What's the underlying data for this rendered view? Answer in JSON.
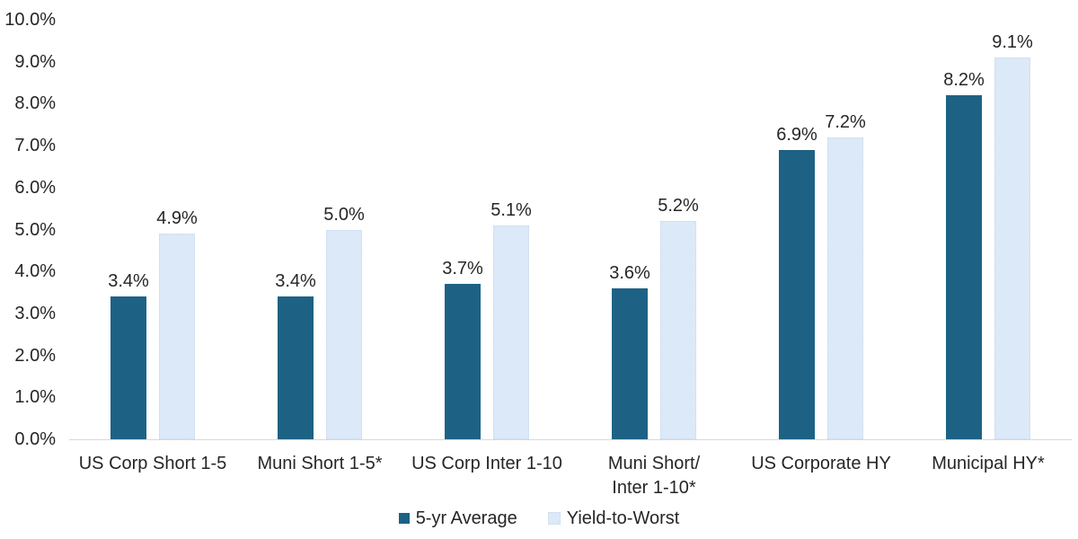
{
  "chart_data": {
    "type": "bar",
    "title": "",
    "categories": [
      "US Corp Short 1-5",
      "Muni Short 1-5*",
      "US Corp Inter 1-10",
      "Muni Short/\nInter 1-10*",
      "US Corporate HY",
      "Municipal HY*"
    ],
    "series": [
      {
        "name": "5-yr Average",
        "color": "#1D6284",
        "values": [
          3.4,
          3.4,
          3.7,
          3.6,
          6.9,
          8.2
        ],
        "labels": [
          "3.4%",
          "3.4%",
          "3.7%",
          "3.6%",
          "6.9%",
          "8.2%"
        ]
      },
      {
        "name": "Yield-to-Worst",
        "color": "#DBE9F8",
        "border_color": "#C9D8EA",
        "values": [
          4.9,
          5.0,
          5.1,
          5.2,
          7.2,
          9.1
        ],
        "labels": [
          "4.9%",
          "5.0%",
          "5.1%",
          "5.2%",
          "7.2%",
          "9.1%"
        ]
      }
    ],
    "y_ticks": [
      {
        "value": 0,
        "label": "0.0%"
      },
      {
        "value": 1,
        "label": "1.0%"
      },
      {
        "value": 2,
        "label": "2.0%"
      },
      {
        "value": 3,
        "label": "3.0%"
      },
      {
        "value": 4,
        "label": "4.0%"
      },
      {
        "value": 5,
        "label": "5.0%"
      },
      {
        "value": 6,
        "label": "6.0%"
      },
      {
        "value": 7,
        "label": "7.0%"
      },
      {
        "value": 8,
        "label": "8.0%"
      },
      {
        "value": 9,
        "label": "9.0%"
      },
      {
        "value": 10,
        "label": "10.0%"
      }
    ],
    "ylim": [
      0,
      10
    ],
    "grid": false,
    "legend_position": "bottom",
    "colors": {
      "axis_line": "#D9D9D9",
      "text": "#262626",
      "background": "#FFFFFF"
    }
  }
}
